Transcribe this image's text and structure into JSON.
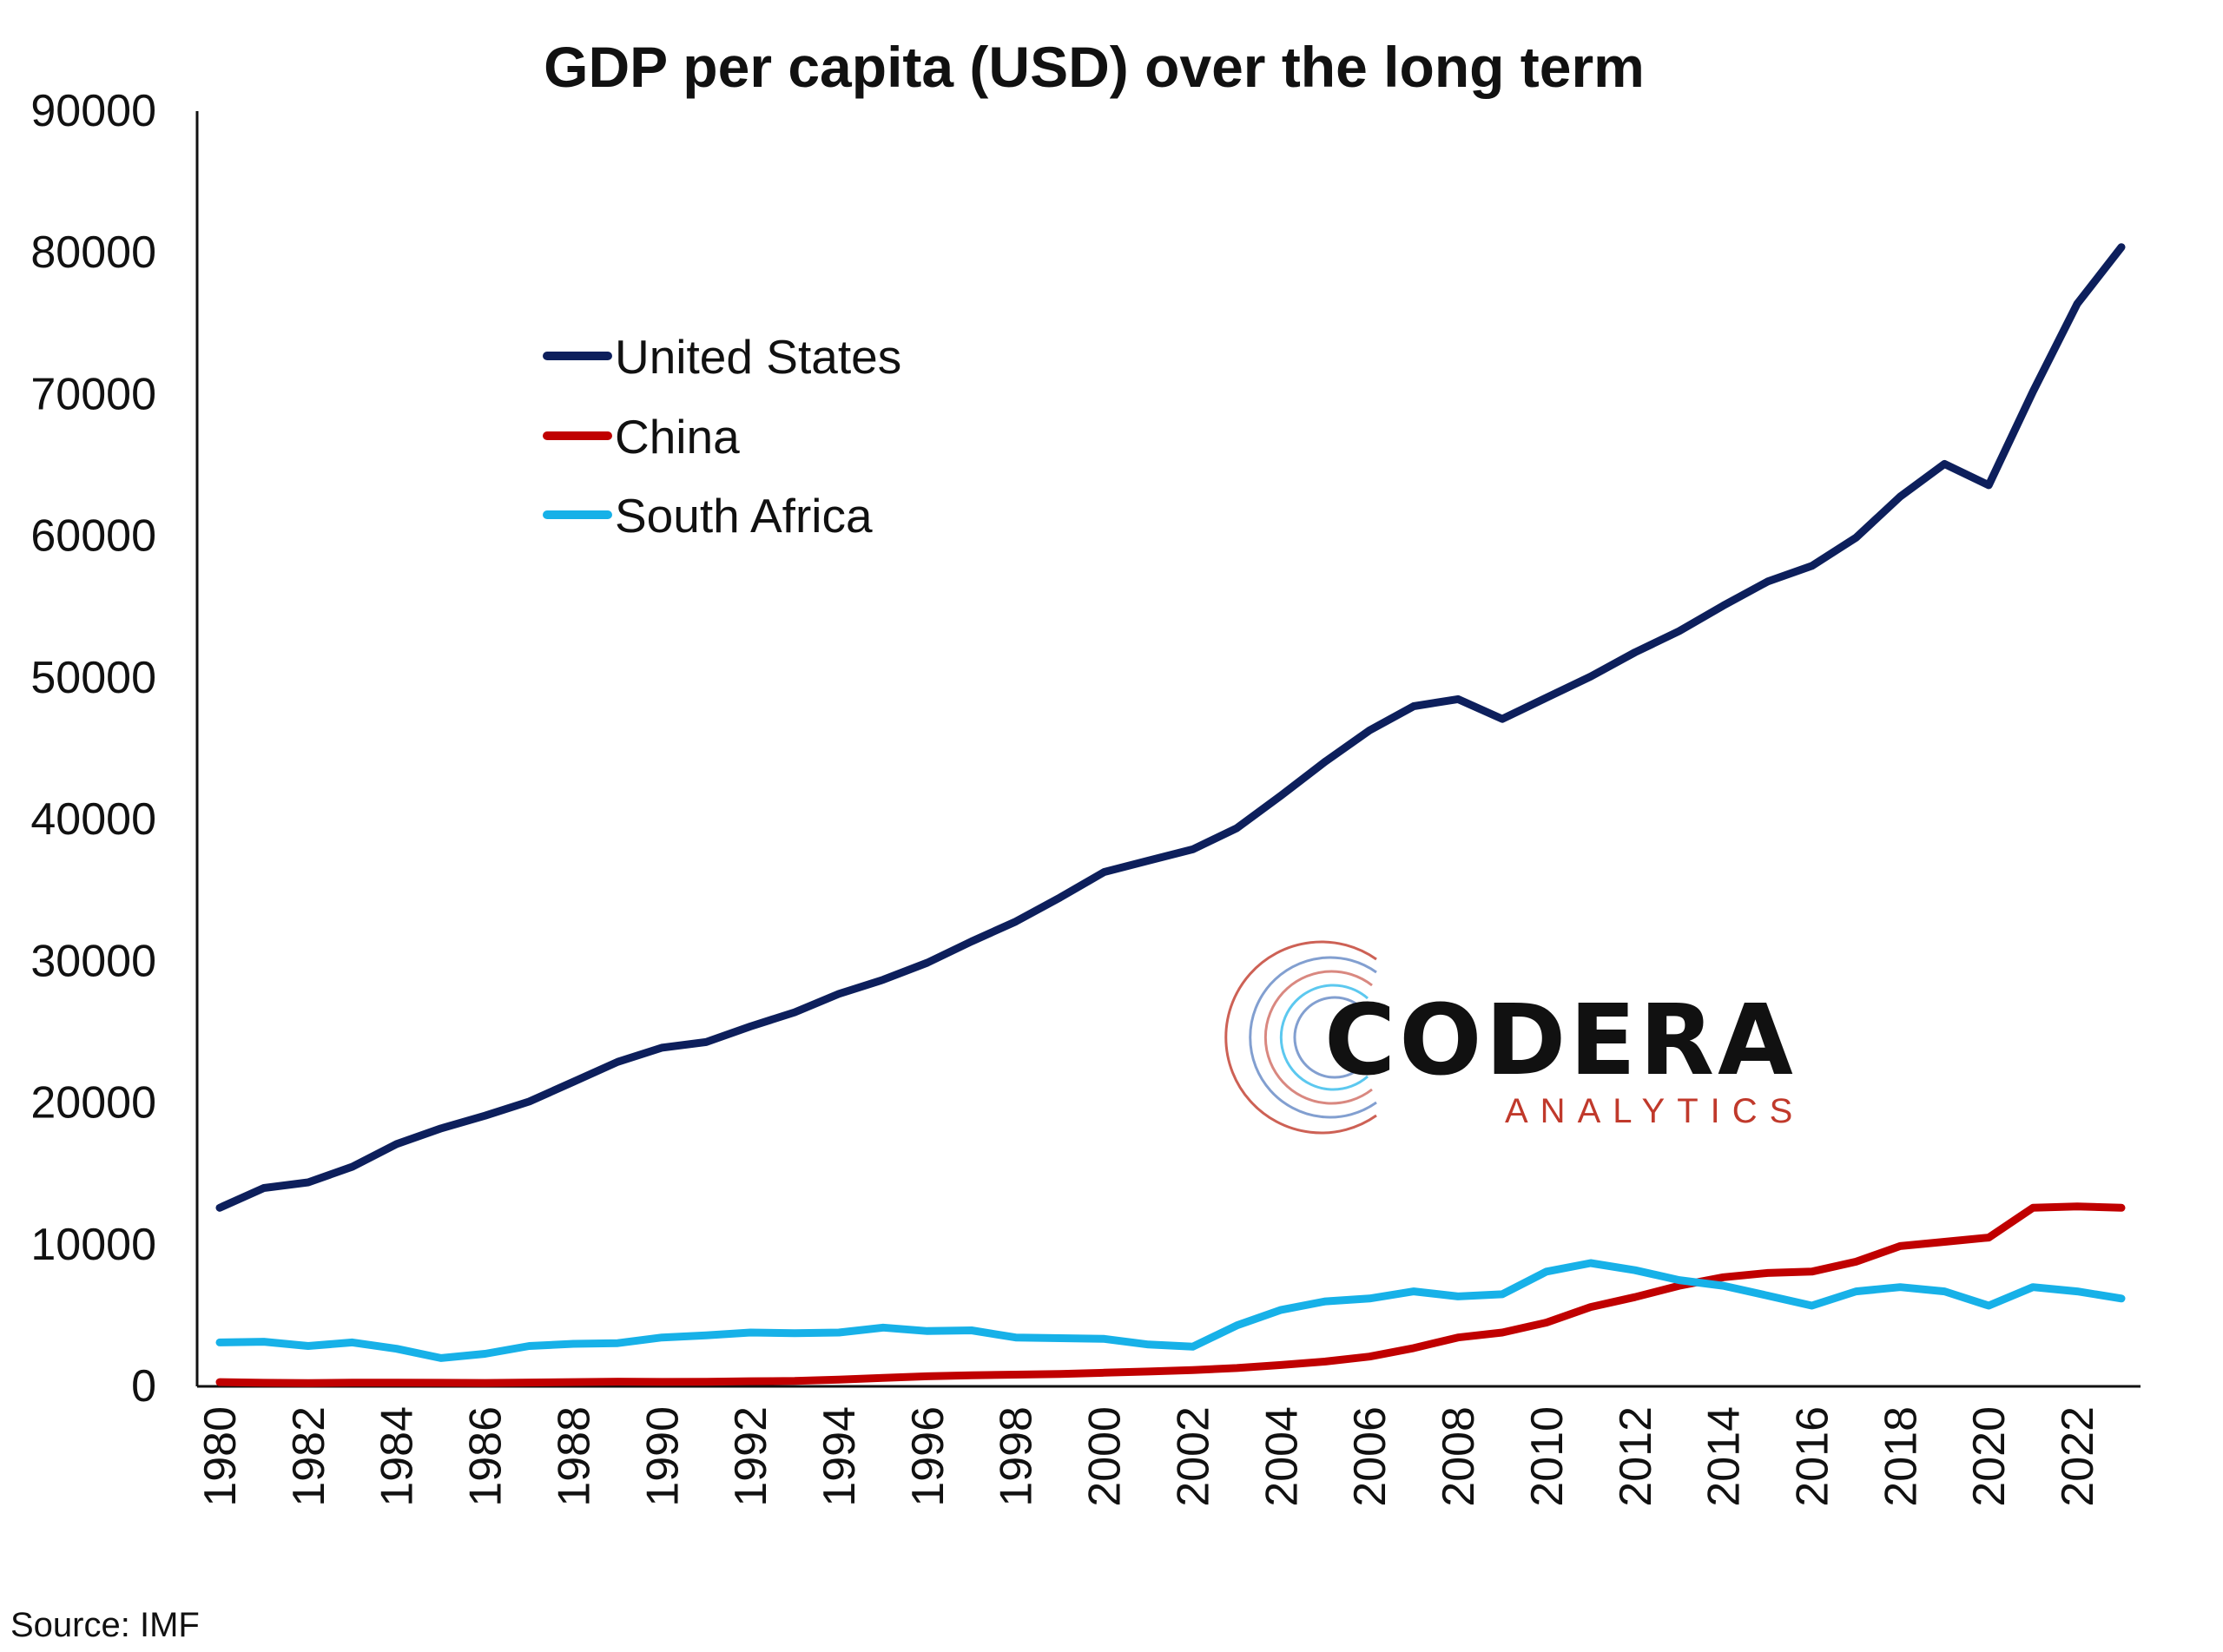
{
  "chart_data": {
    "type": "line",
    "title": "GDP per capita (USD) over the long term",
    "xlabel": "",
    "ylabel": "",
    "ylim": [
      0,
      90000
    ],
    "yticks": [
      "0",
      "10000",
      "20000",
      "30000",
      "40000",
      "50000",
      "60000",
      "70000",
      "80000",
      "90000"
    ],
    "xlim": [
      1980,
      2023
    ],
    "xticks": [
      "1980",
      "1982",
      "1984",
      "1986",
      "1988",
      "1990",
      "1992",
      "1994",
      "1996",
      "1998",
      "2000",
      "2002",
      "2004",
      "2006",
      "2008",
      "2010",
      "2012",
      "2014",
      "2016",
      "2018",
      "2020",
      "2022"
    ],
    "x": [
      1980,
      1981,
      1982,
      1983,
      1984,
      1985,
      1986,
      1987,
      1988,
      1989,
      1990,
      1991,
      1992,
      1993,
      1994,
      1995,
      1996,
      1997,
      1998,
      1999,
      2000,
      2001,
      2002,
      2003,
      2004,
      2005,
      2006,
      2007,
      2008,
      2009,
      2010,
      2011,
      2012,
      2013,
      2014,
      2015,
      2016,
      2017,
      2018,
      2019,
      2020,
      2021,
      2022,
      2023
    ],
    "series": [
      {
        "name": "United States",
        "color": "#0d1f5c",
        "values": [
          12600,
          14000,
          14400,
          15500,
          17100,
          18200,
          19100,
          20100,
          21500,
          22900,
          23900,
          24300,
          25400,
          26400,
          27700,
          28700,
          29900,
          31400,
          32800,
          34500,
          36300,
          37100,
          37900,
          39400,
          41700,
          44100,
          46300,
          48000,
          48500,
          47100,
          48600,
          50100,
          51800,
          53300,
          55100,
          56800,
          57900,
          59900,
          62800,
          65100,
          63600,
          70200,
          76400,
          80400
        ],
        "legend_label": "United States"
      },
      {
        "name": "China",
        "color": "#c00000",
        "values": [
          300,
          250,
          230,
          260,
          260,
          250,
          240,
          270,
          300,
          330,
          310,
          320,
          360,
          380,
          470,
          600,
          710,
          780,
          830,
          870,
          960,
          1050,
          1150,
          1290,
          1510,
          1750,
          2100,
          2700,
          3450,
          3800,
          4500,
          5600,
          6300,
          7100,
          7700,
          8000,
          8100,
          8800,
          9900,
          10200,
          10500,
          12600,
          12700,
          12600
        ],
        "legend_label": "China"
      },
      {
        "name": "South Africa",
        "color": "#17b1e8",
        "values": [
          3100,
          3150,
          2850,
          3100,
          2650,
          2000,
          2300,
          2850,
          3000,
          3050,
          3450,
          3600,
          3800,
          3750,
          3800,
          4150,
          3900,
          3950,
          3450,
          3400,
          3350,
          2950,
          2800,
          4300,
          5400,
          6000,
          6200,
          6700,
          6350,
          6500,
          8100,
          8700,
          8200,
          7500,
          7100,
          6400,
          5700,
          6700,
          7000,
          6700,
          5700,
          7000,
          6700,
          6200
        ],
        "legend_label": "South Africa"
      }
    ],
    "legend_placement": "upper-left inside plot",
    "grid": false
  },
  "logo": {
    "main": "CODERA",
    "sub": "ANALYTICS",
    "sub_color": "#c0392b"
  },
  "source_note": "Source: IMF"
}
